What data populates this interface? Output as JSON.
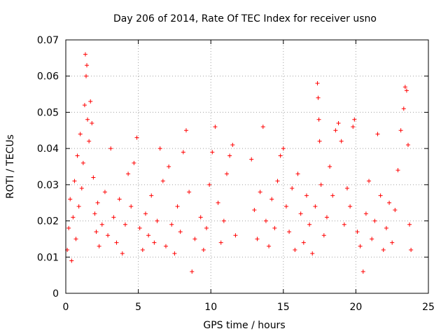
{
  "chart_data": {
    "type": "scatter",
    "title": "Day 206 of 2014, Rate Of TEC Index for receiver usno",
    "xlabel": "GPS time / hours",
    "ylabel": "ROTI / TECUs",
    "xlim": [
      0,
      25
    ],
    "ylim": [
      0,
      0.07
    ],
    "xticks": [
      "0",
      "5",
      "10",
      "15",
      "20",
      "25"
    ],
    "yticks": [
      "0",
      "0.01",
      "0.02",
      "0.03",
      "0.04",
      "0.05",
      "0.06",
      "0.07"
    ],
    "grid": true,
    "marker": "+",
    "color": "#ff0000",
    "series": [
      {
        "name": "ROTI",
        "points": [
          [
            0.1,
            0.012
          ],
          [
            0.2,
            0.018
          ],
          [
            0.3,
            0.026
          ],
          [
            0.4,
            0.009
          ],
          [
            0.5,
            0.021
          ],
          [
            0.6,
            0.031
          ],
          [
            0.7,
            0.015
          ],
          [
            0.8,
            0.038
          ],
          [
            0.9,
            0.024
          ],
          [
            1.0,
            0.044
          ],
          [
            1.1,
            0.029
          ],
          [
            1.2,
            0.036
          ],
          [
            1.3,
            0.052
          ],
          [
            1.35,
            0.066
          ],
          [
            1.4,
            0.06
          ],
          [
            1.45,
            0.063
          ],
          [
            1.5,
            0.048
          ],
          [
            1.6,
            0.042
          ],
          [
            1.7,
            0.053
          ],
          [
            1.8,
            0.047
          ],
          [
            1.9,
            0.032
          ],
          [
            2.0,
            0.022
          ],
          [
            2.1,
            0.017
          ],
          [
            2.2,
            0.025
          ],
          [
            2.3,
            0.013
          ],
          [
            2.5,
            0.019
          ],
          [
            2.7,
            0.028
          ],
          [
            2.9,
            0.016
          ],
          [
            3.1,
            0.04
          ],
          [
            3.3,
            0.021
          ],
          [
            3.5,
            0.014
          ],
          [
            3.7,
            0.026
          ],
          [
            3.9,
            0.011
          ],
          [
            4.1,
            0.019
          ],
          [
            4.3,
            0.033
          ],
          [
            4.5,
            0.024
          ],
          [
            4.7,
            0.036
          ],
          [
            4.9,
            0.043
          ],
          [
            5.1,
            0.018
          ],
          [
            5.3,
            0.012
          ],
          [
            5.5,
            0.022
          ],
          [
            5.7,
            0.016
          ],
          [
            5.9,
            0.027
          ],
          [
            6.1,
            0.014
          ],
          [
            6.3,
            0.02
          ],
          [
            6.5,
            0.04
          ],
          [
            6.7,
            0.031
          ],
          [
            6.9,
            0.013
          ],
          [
            7.1,
            0.035
          ],
          [
            7.3,
            0.019
          ],
          [
            7.5,
            0.011
          ],
          [
            7.7,
            0.024
          ],
          [
            7.9,
            0.017
          ],
          [
            8.1,
            0.039
          ],
          [
            8.3,
            0.045
          ],
          [
            8.5,
            0.028
          ],
          [
            8.7,
            0.006
          ],
          [
            8.9,
            0.015
          ],
          [
            9.3,
            0.021
          ],
          [
            9.5,
            0.012
          ],
          [
            9.7,
            0.018
          ],
          [
            9.9,
            0.03
          ],
          [
            10.1,
            0.039
          ],
          [
            10.3,
            0.046
          ],
          [
            10.5,
            0.025
          ],
          [
            10.7,
            0.014
          ],
          [
            10.9,
            0.02
          ],
          [
            11.1,
            0.033
          ],
          [
            11.3,
            0.038
          ],
          [
            11.5,
            0.041
          ],
          [
            11.7,
            0.016
          ],
          [
            12.8,
            0.037
          ],
          [
            13.0,
            0.023
          ],
          [
            13.2,
            0.015
          ],
          [
            13.4,
            0.028
          ],
          [
            13.6,
            0.046
          ],
          [
            13.8,
            0.02
          ],
          [
            14.0,
            0.013
          ],
          [
            14.2,
            0.026
          ],
          [
            14.4,
            0.018
          ],
          [
            14.6,
            0.031
          ],
          [
            14.8,
            0.038
          ],
          [
            15.0,
            0.04
          ],
          [
            15.2,
            0.024
          ],
          [
            15.4,
            0.017
          ],
          [
            15.6,
            0.029
          ],
          [
            15.8,
            0.012
          ],
          [
            16.0,
            0.033
          ],
          [
            16.2,
            0.022
          ],
          [
            16.4,
            0.014
          ],
          [
            16.6,
            0.027
          ],
          [
            16.8,
            0.019
          ],
          [
            17.0,
            0.011
          ],
          [
            17.2,
            0.024
          ],
          [
            17.35,
            0.058
          ],
          [
            17.4,
            0.054
          ],
          [
            17.45,
            0.048
          ],
          [
            17.5,
            0.042
          ],
          [
            17.6,
            0.03
          ],
          [
            17.8,
            0.016
          ],
          [
            18.0,
            0.021
          ],
          [
            18.2,
            0.035
          ],
          [
            18.4,
            0.027
          ],
          [
            18.6,
            0.045
          ],
          [
            18.8,
            0.047
          ],
          [
            19.0,
            0.042
          ],
          [
            19.2,
            0.019
          ],
          [
            19.4,
            0.029
          ],
          [
            19.6,
            0.024
          ],
          [
            19.8,
            0.046
          ],
          [
            19.9,
            0.048
          ],
          [
            20.1,
            0.017
          ],
          [
            20.3,
            0.013
          ],
          [
            20.5,
            0.006
          ],
          [
            20.7,
            0.022
          ],
          [
            20.9,
            0.031
          ],
          [
            21.1,
            0.015
          ],
          [
            21.3,
            0.02
          ],
          [
            21.5,
            0.044
          ],
          [
            21.7,
            0.027
          ],
          [
            21.9,
            0.012
          ],
          [
            22.1,
            0.018
          ],
          [
            22.3,
            0.025
          ],
          [
            22.5,
            0.014
          ],
          [
            22.7,
            0.023
          ],
          [
            22.9,
            0.034
          ],
          [
            23.1,
            0.045
          ],
          [
            23.3,
            0.051
          ],
          [
            23.4,
            0.057
          ],
          [
            23.5,
            0.056
          ],
          [
            23.6,
            0.041
          ],
          [
            23.7,
            0.019
          ],
          [
            23.8,
            0.012
          ]
        ]
      }
    ]
  }
}
